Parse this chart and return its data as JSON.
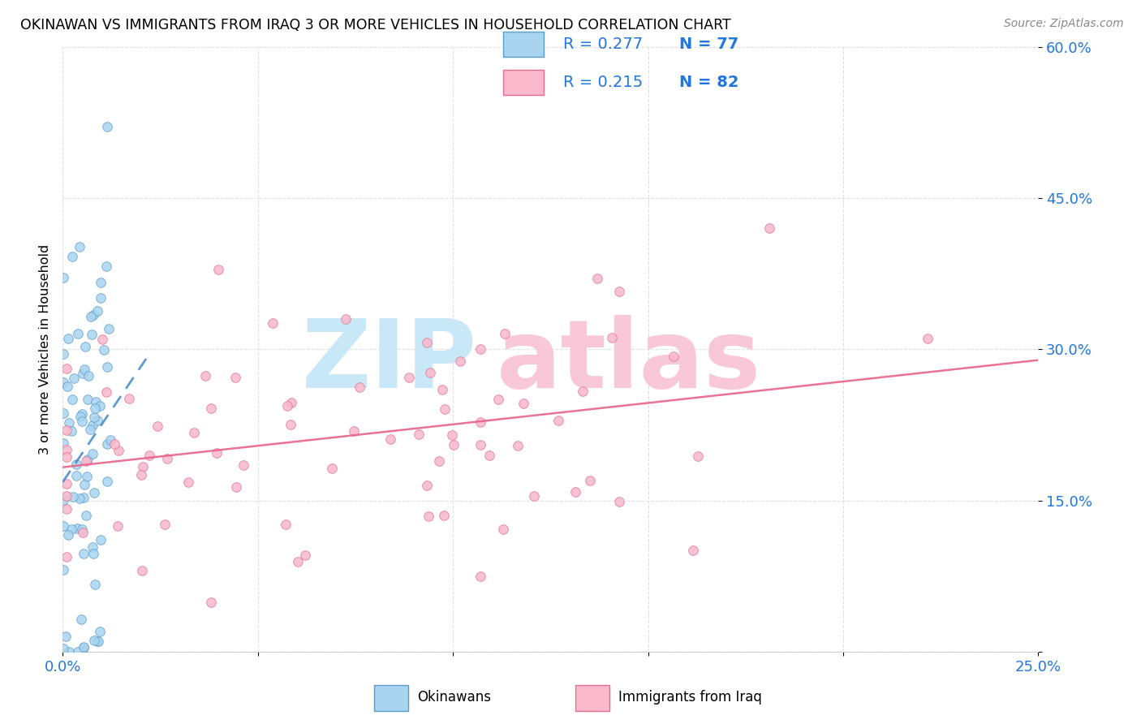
{
  "title": "OKINAWAN VS IMMIGRANTS FROM IRAQ 3 OR MORE VEHICLES IN HOUSEHOLD CORRELATION CHART",
  "source": "Source: ZipAtlas.com",
  "ylabel": "3 or more Vehicles in Household",
  "xmin": 0.0,
  "xmax": 0.25,
  "ymin": 0.0,
  "ymax": 0.6,
  "color_blue_fill": "#A8D4F0",
  "color_blue_edge": "#5B9DC9",
  "color_pink_fill": "#F9B8CB",
  "color_pink_edge": "#E07090",
  "color_blue_line": "#4488CC",
  "color_pink_line": "#E8638A",
  "color_blue_text": "#2277DD",
  "legend_r1": "R = 0.277",
  "legend_n1": "N = 77",
  "legend_r2": "R = 0.215",
  "legend_n2": "N = 82",
  "watermark_zip_color": "#C8E8F8",
  "watermark_atlas_color": "#F8C8D8"
}
